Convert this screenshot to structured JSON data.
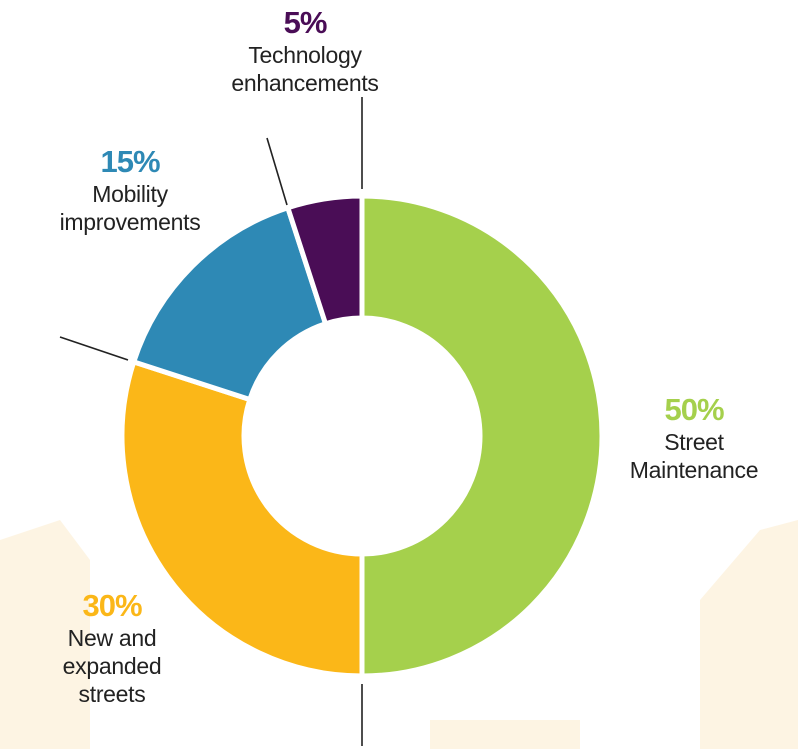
{
  "chart_data": {
    "type": "donut",
    "categories": [
      "Street Maintenance",
      "New and expanded streets",
      "Mobility improvements",
      "Technology enhancements"
    ],
    "values": [
      50,
      30,
      15,
      5
    ],
    "value_labels": [
      "50%",
      "30%",
      "15%",
      "5%"
    ],
    "colors": [
      "#a5d04c",
      "#fbb718",
      "#2e89b5",
      "#4a0d56"
    ]
  }
}
